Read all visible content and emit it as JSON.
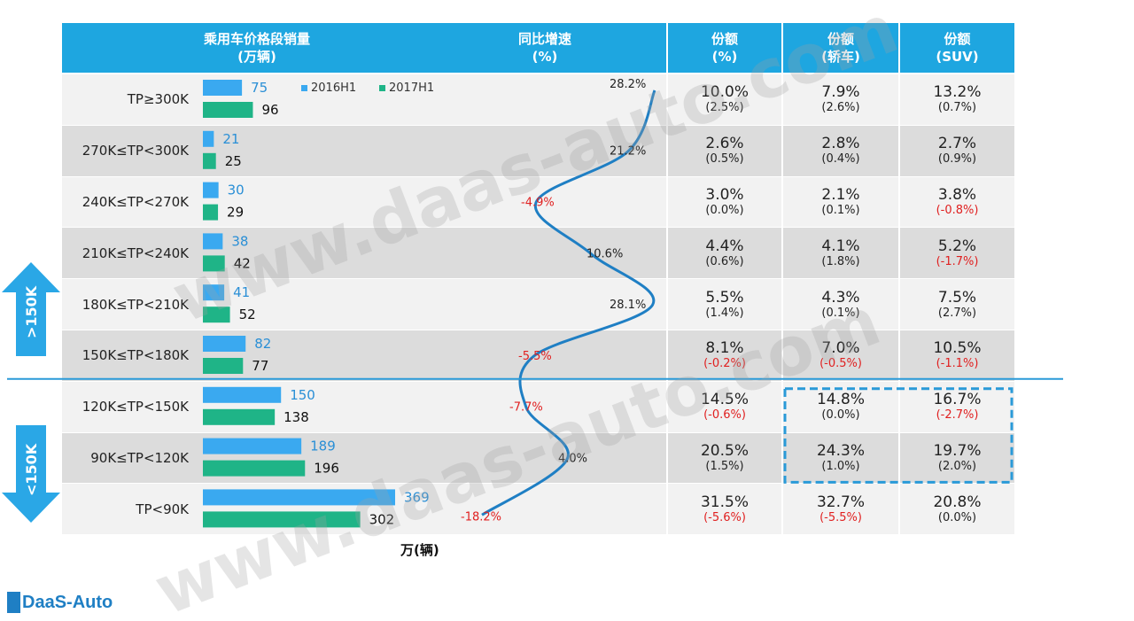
{
  "headers": {
    "col1_line1": "乘用车价格段销量",
    "col1_line2": "(万辆)",
    "col2_line1": "同比增速",
    "col2_line2": "(%)",
    "col3_line1": "份额",
    "col3_line2": "(%)",
    "col4_line1": "份额",
    "col4_line2": "(轿车)",
    "col5_line1": "份额",
    "col5_line2": "(SUV)"
  },
  "legend": {
    "s2016": "2016H1",
    "s2017": "2017H1"
  },
  "axis_unit": "万(辆)",
  "side_labels": {
    "upper": ">150K",
    "lower": "<150K"
  },
  "brand": "DaaS-Auto",
  "watermark": "www.daas-auto.com",
  "colors": {
    "header": "#1ea6e0",
    "bar2016": "#3aa9f0",
    "bar2017": "#1fb487",
    "growth_line": "#1f7fc4",
    "negative": "#e02020",
    "arrow": "#2aa7e6"
  },
  "chart_data": {
    "type": "bar",
    "categories": [
      "TP≥300K",
      "270K≤TP<300K",
      "240K≤TP<270K",
      "210K≤TP<240K",
      "180K≤TP<210K",
      "150K≤TP<180K",
      "120K≤TP<150K",
      "90K≤TP<120K",
      "TP<90K"
    ],
    "series": [
      {
        "name": "2016H1",
        "values": [
          75,
          21,
          30,
          38,
          41,
          82,
          150,
          189,
          369
        ]
      },
      {
        "name": "2017H1",
        "values": [
          96,
          25,
          29,
          42,
          52,
          77,
          138,
          196,
          302
        ]
      }
    ],
    "growth": {
      "type": "line",
      "values": [
        28.2,
        21.2,
        -4.9,
        10.6,
        28.1,
        -5.5,
        -7.7,
        4.0,
        -18.2
      ],
      "labels": [
        "28.2%",
        "21.2%",
        "-4.9%",
        "10.6%",
        "28.1%",
        "-5.5%",
        "-7.7%",
        "4.0%",
        "-18.2%"
      ]
    },
    "share_total": {
      "values": [
        "10.0%",
        "2.6%",
        "3.0%",
        "4.4%",
        "5.5%",
        "8.1%",
        "14.5%",
        "20.5%",
        "31.5%"
      ],
      "changes": [
        "(2.5%)",
        "(0.5%)",
        "(0.0%)",
        "(0.6%)",
        "(1.4%)",
        "(-0.2%)",
        "(-0.6%)",
        "(1.5%)",
        "(-5.6%)"
      ]
    },
    "share_sedan": {
      "values": [
        "7.9%",
        "2.8%",
        "2.1%",
        "4.1%",
        "4.3%",
        "7.0%",
        "14.8%",
        "24.3%",
        "32.7%"
      ],
      "changes": [
        "(2.6%)",
        "(0.4%)",
        "(0.1%)",
        "(1.8%)",
        "(0.1%)",
        "(-0.5%)",
        "(0.0%)",
        "(1.0%)",
        "(-5.5%)"
      ]
    },
    "share_suv": {
      "values": [
        "13.2%",
        "2.7%",
        "3.8%",
        "5.2%",
        "7.5%",
        "10.5%",
        "16.7%",
        "19.7%",
        "20.8%"
      ],
      "changes": [
        "(0.7%)",
        "(0.9%)",
        "(-0.8%)",
        "(-1.7%)",
        "(2.7%)",
        "(-1.1%)",
        "(-2.7%)",
        "(2.0%)",
        "(0.0%)"
      ]
    }
  }
}
